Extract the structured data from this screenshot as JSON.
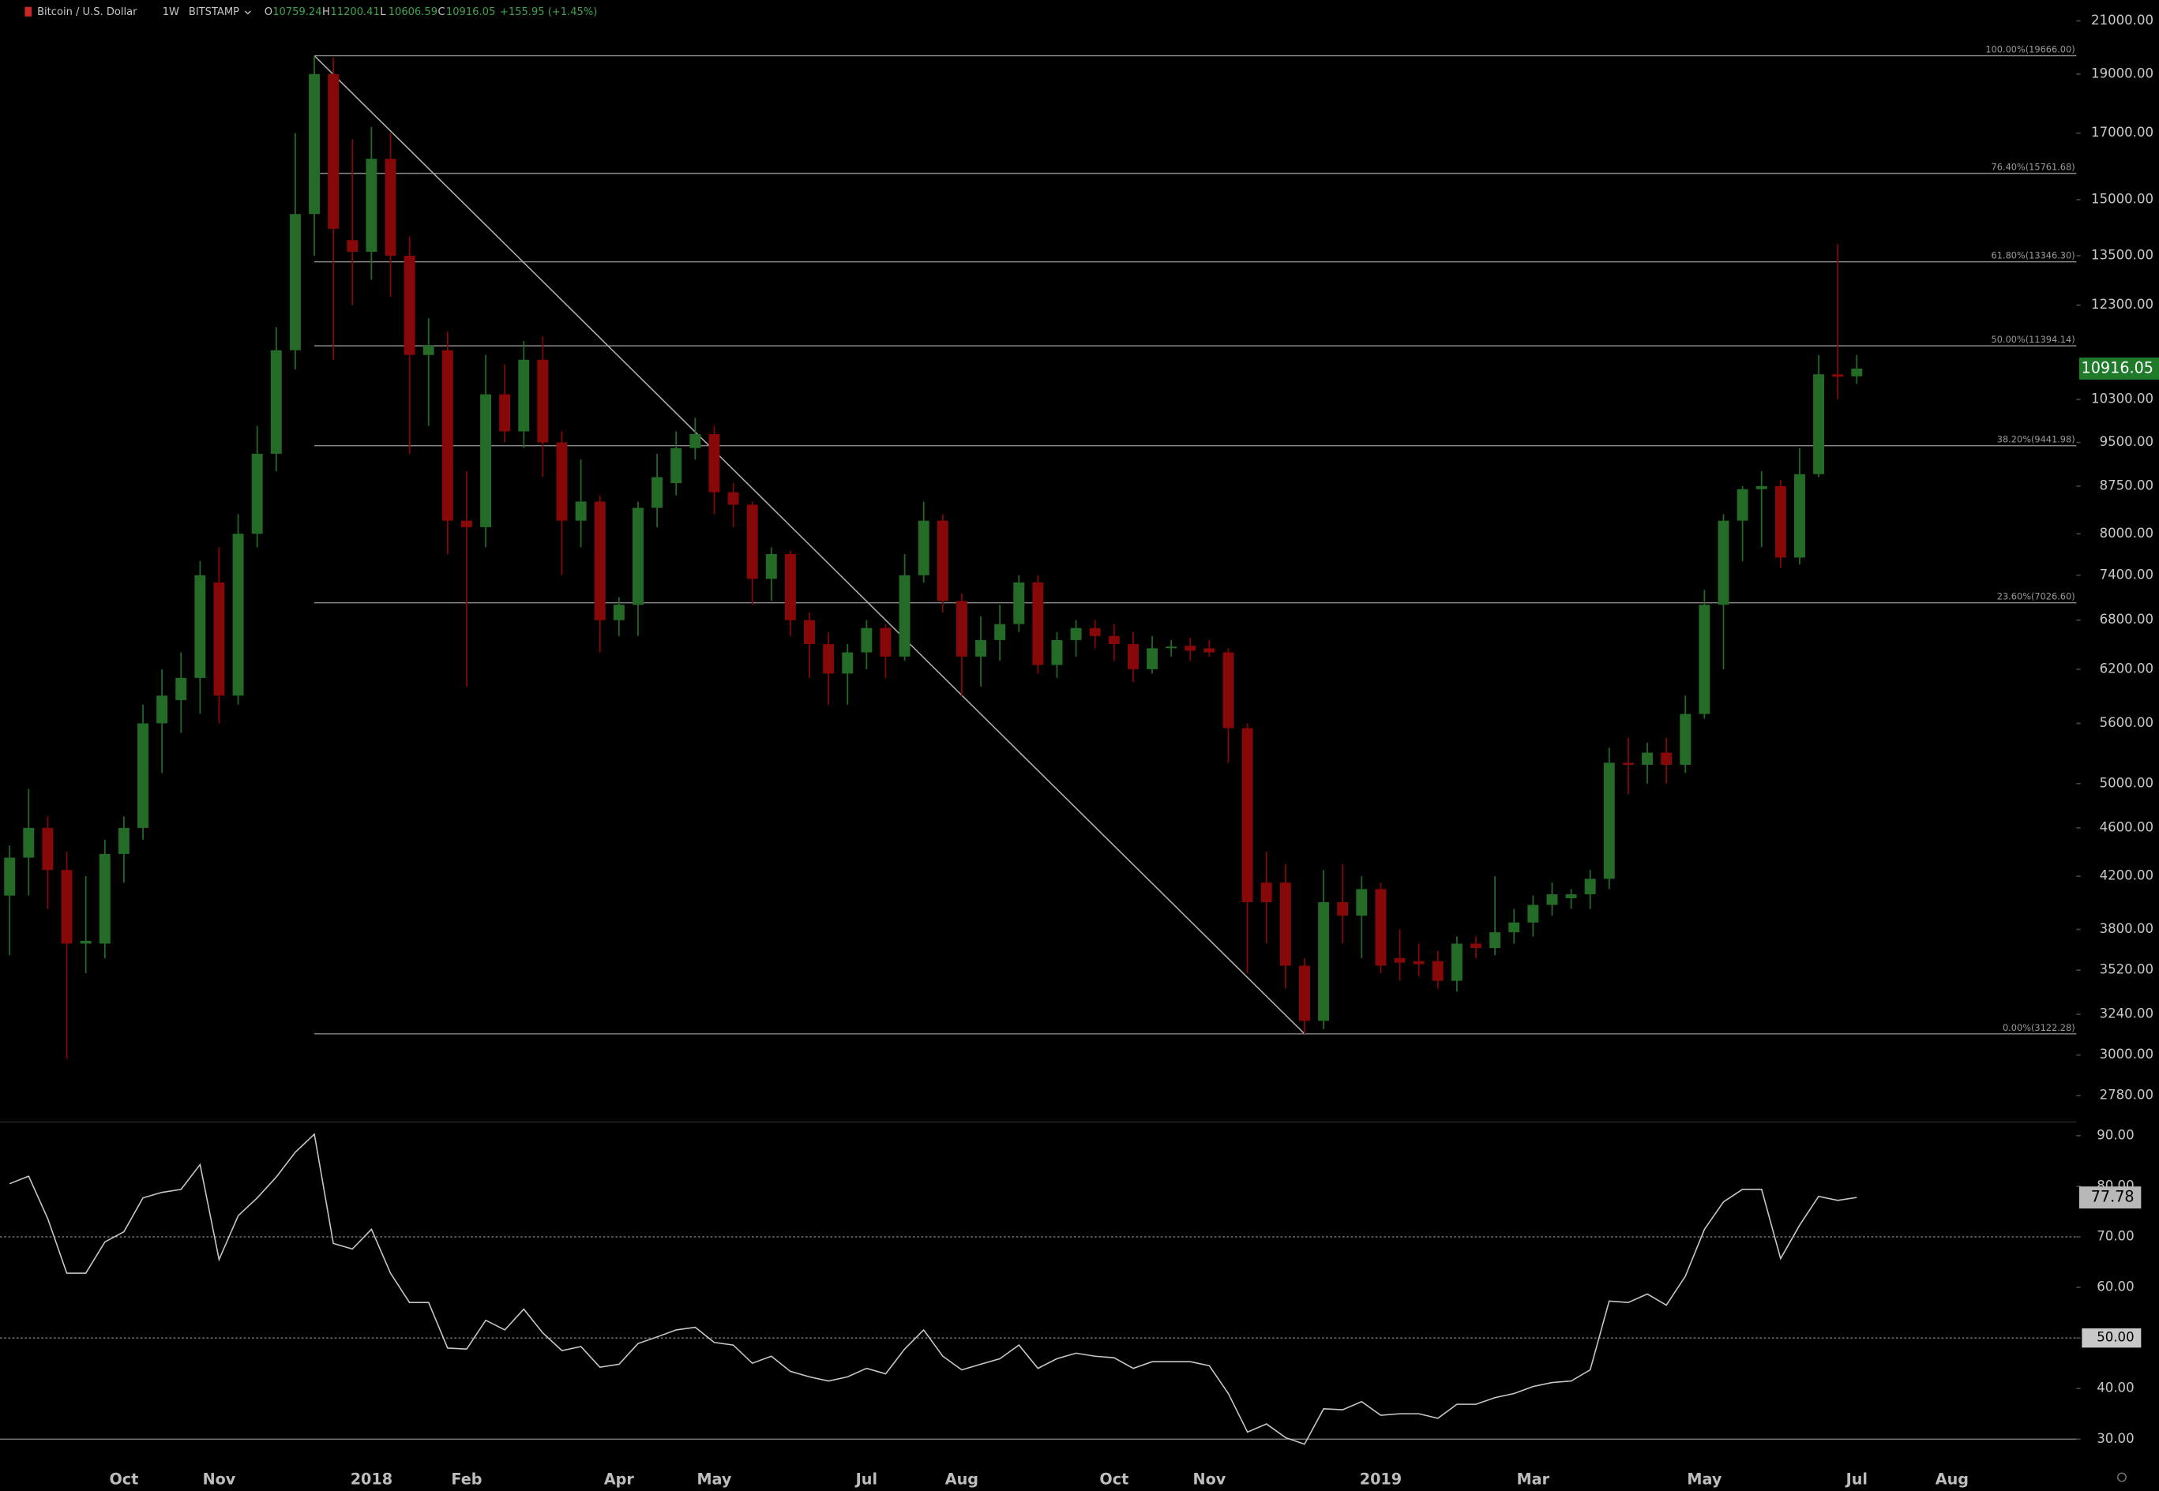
{
  "chart_data": {
    "type": "candlestick",
    "symbol": "Bitcoin / U.S. Dollar",
    "interval": "1W",
    "exchange": "BITSTAMP",
    "header_labels": [
      "O",
      "H",
      "L",
      "C"
    ],
    "change": "+155.95 (+1.45%)",
    "up_color": "#236b27",
    "down_color": "#860808",
    "log_scale": true,
    "categories": [
      null,
      null,
      null,
      null,
      null,
      null,
      "Oct",
      null,
      null,
      null,
      null,
      "Nov",
      null,
      null,
      null,
      null,
      null,
      null,
      null,
      "2018",
      null,
      null,
      null,
      null,
      "Feb",
      null,
      null,
      null,
      null,
      null,
      null,
      null,
      "Apr",
      null,
      null,
      null,
      null,
      "May",
      null,
      null,
      null,
      null,
      null,
      null,
      null,
      "Jul",
      null,
      null,
      null,
      null,
      "Aug",
      null,
      null,
      null,
      null,
      null,
      null,
      null,
      "Oct",
      null,
      null,
      null,
      null,
      "Nov",
      null,
      null,
      null,
      null,
      null,
      null,
      null,
      null,
      "2019",
      null,
      null,
      null,
      null,
      null,
      null,
      null,
      "Mar",
      null,
      null,
      null,
      null,
      null,
      null,
      null,
      null,
      "May",
      null,
      null,
      null,
      null,
      null,
      null,
      null,
      "Jul",
      null,
      null,
      null,
      null,
      "Aug"
    ],
    "open": [
      4050,
      4350,
      4600,
      4250,
      3700,
      3700,
      4380,
      4600,
      5600,
      5850,
      6100,
      7300,
      5900,
      8000,
      9300,
      11300,
      14600,
      19000,
      13900,
      13600,
      16200,
      13500,
      11200,
      11300,
      8200,
      8100,
      10400,
      9700,
      11100,
      9500,
      8200,
      8500,
      6800,
      7000,
      8400,
      8800,
      9400,
      9650,
      8650,
      8450,
      7350,
      7700,
      6800,
      6500,
      6150,
      6400,
      6700,
      6350,
      7400,
      8200,
      7050,
      6350,
      6550,
      6750,
      7300,
      6250,
      6550,
      6700,
      6600,
      6500,
      6200,
      6450,
      6480,
      6450,
      6400,
      5550,
      4150,
      4150,
      3550,
      3200,
      4000,
      3900,
      4100,
      3600,
      3580,
      3580,
      3450,
      3700,
      3670,
      3780,
      3850,
      3980,
      4030,
      4060,
      4180,
      5200,
      5180,
      5300,
      5180,
      5700,
      7000,
      8200,
      8700,
      8750,
      7650,
      8950,
      10800,
      10759.24,
      null,
      null,
      null,
      null,
      null
    ],
    "high": [
      4450,
      4950,
      4700,
      4400,
      4200,
      4500,
      4700,
      5800,
      6200,
      6400,
      7600,
      7800,
      8300,
      9800,
      11800,
      17000,
      19666,
      19600,
      16800,
      17200,
      17000,
      14000,
      12000,
      11700,
      9000,
      11200,
      11000,
      11500,
      11600,
      9700,
      9200,
      8600,
      7100,
      8500,
      9300,
      9700,
      9950,
      9800,
      8800,
      8500,
      7800,
      7750,
      6900,
      6650,
      6500,
      6800,
      6750,
      7700,
      8500,
      8300,
      7150,
      6850,
      7000,
      7400,
      7400,
      6650,
      6800,
      6800,
      6750,
      6650,
      6600,
      6550,
      6580,
      6550,
      6450,
      5600,
      4400,
      4300,
      3600,
      4250,
      4300,
      4200,
      4150,
      3800,
      3700,
      3650,
      3750,
      3750,
      4200,
      3950,
      4050,
      4150,
      4100,
      4250,
      5350,
      5450,
      5400,
      5450,
      5900,
      7200,
      8300,
      8750,
      9000,
      8850,
      9400,
      11200,
      13800,
      11200.41,
      null,
      null,
      null,
      null,
      null
    ],
    "low": [
      3620,
      4050,
      3950,
      2980,
      3500,
      3600,
      4150,
      4500,
      5100,
      5500,
      5700,
      5600,
      5800,
      7800,
      9000,
      10900,
      13500,
      11100,
      12300,
      12900,
      12500,
      9300,
      9800,
      7700,
      6000,
      7800,
      9500,
      9400,
      8900,
      7400,
      7800,
      6400,
      6600,
      6600,
      8100,
      8600,
      9200,
      8300,
      8100,
      7000,
      7050,
      6600,
      6100,
      5800,
      5800,
      6200,
      6100,
      6300,
      7300,
      6900,
      5900,
      6000,
      6300,
      6650,
      6150,
      6100,
      6350,
      6450,
      6300,
      6050,
      6150,
      6350,
      6300,
      6350,
      5200,
      3500,
      3700,
      3400,
      3122.28,
      3150,
      3700,
      3600,
      3500,
      3450,
      3480,
      3400,
      3380,
      3600,
      3620,
      3700,
      3750,
      3900,
      3950,
      3950,
      4100,
      4900,
      5000,
      5000,
      5100,
      5650,
      6200,
      7600,
      7800,
      7500,
      7550,
      8900,
      10300,
      10606.59,
      null,
      null,
      null,
      null,
      null
    ],
    "close": [
      4350,
      4600,
      4250,
      3700,
      3720,
      4380,
      4600,
      5600,
      5900,
      6100,
      7400,
      5900,
      8000,
      9300,
      11300,
      14600,
      19000,
      14200,
      13600,
      16200,
      13500,
      11200,
      11400,
      8200,
      8100,
      10400,
      9700,
      11100,
      9500,
      8200,
      8500,
      6800,
      7000,
      8400,
      8900,
      9400,
      9650,
      8650,
      8450,
      7350,
      7700,
      6800,
      6500,
      6150,
      6400,
      6700,
      6350,
      7400,
      8200,
      7050,
      6350,
      6550,
      6750,
      7300,
      6250,
      6550,
      6700,
      6600,
      6500,
      6200,
      6450,
      6470,
      6420,
      6400,
      5550,
      4000,
      4000,
      3550,
      3200,
      4000,
      3900,
      4100,
      3550,
      3570,
      3560,
      3450,
      3700,
      3670,
      3780,
      3850,
      3980,
      4060,
      4060,
      4180,
      5200,
      5180,
      5300,
      5180,
      5700,
      7000,
      8200,
      8700,
      8750,
      7650,
      8950,
      10800,
      10750,
      10916.05,
      null,
      null,
      null,
      null,
      null
    ],
    "rsi": [
      80.5,
      82,
      73.6,
      62.8,
      62.8,
      69,
      71,
      77.7,
      78.8,
      79.4,
      84.3,
      65.5,
      74.2,
      77.7,
      81.8,
      86.7,
      90.3,
      68.7,
      67.6,
      71.5,
      62.8,
      57,
      57,
      48,
      47.8,
      53.5,
      51.6,
      55.7,
      51,
      47.5,
      48.3,
      44.2,
      44.8,
      48.9,
      50.2,
      51.6,
      52.1,
      49.1,
      48.6,
      45,
      46.4,
      43.4,
      42.3,
      41.5,
      42.3,
      44,
      42.9,
      47.8,
      51.6,
      46.4,
      43.7,
      44.8,
      45.9,
      48.6,
      44,
      45.9,
      47,
      46.4,
      46.1,
      44,
      45.3,
      45.3,
      45.3,
      44.5,
      39,
      31.4,
      33,
      30.3,
      29,
      36,
      35.8,
      37.4,
      34.7,
      35,
      35,
      34.1,
      36.9,
      36.9,
      38.2,
      39,
      40.4,
      41.2,
      41.5,
      43.7,
      57.3,
      57,
      58.7,
      56.5,
      62.2,
      71.5,
      76.9,
      79.4,
      79.4,
      65.7,
      72.3,
      78,
      77.2,
      77.78,
      null,
      null,
      null,
      null,
      null
    ],
    "ylim": [
      2645,
      21840
    ],
    "yticks": [
      {
        "value": 21000,
        "label": "21000.00"
      },
      {
        "value": 19000,
        "label": "19000.00"
      },
      {
        "value": 17000,
        "label": "17000.00"
      },
      {
        "value": 15000,
        "label": "15000.00"
      },
      {
        "value": 13500,
        "label": "13500.00"
      },
      {
        "value": 12300,
        "label": "12300.00"
      },
      {
        "value": 10300,
        "label": "10300.00"
      },
      {
        "value": 9500,
        "label": "9500.00"
      },
      {
        "value": 8750,
        "label": "8750.00"
      },
      {
        "value": 8000,
        "label": "8000.00"
      },
      {
        "value": 7400,
        "label": "7400.00"
      },
      {
        "value": 6800,
        "label": "6800.00"
      },
      {
        "value": 6200,
        "label": "6200.00"
      },
      {
        "value": 5600,
        "label": "5600.00"
      },
      {
        "value": 5000,
        "label": "5000.00"
      },
      {
        "value": 4600,
        "label": "4600.00"
      },
      {
        "value": 4200,
        "label": "4200.00"
      },
      {
        "value": 3800,
        "label": "3800.00"
      },
      {
        "value": 3520,
        "label": "3520.00"
      },
      {
        "value": 3240,
        "label": "3240.00"
      },
      {
        "value": 3000,
        "label": "3000.00"
      },
      {
        "value": 2780,
        "label": "2780.00"
      }
    ],
    "fib_levels": [
      {
        "value": 19666,
        "label": "100.00%(19666.00)"
      },
      {
        "value": 15761.68,
        "label": "76.40%(15761.68)"
      },
      {
        "value": 13346.3,
        "label": "61.80%(13346.30)"
      },
      {
        "value": 11394.14,
        "label": "50.00%(11394.14)"
      },
      {
        "value": 9441.98,
        "label": "38.20%(9441.98)"
      },
      {
        "value": 7026.6,
        "label": "23.60%(7026.60)"
      },
      {
        "value": 3122.28,
        "label": "0.00%(3122.28)"
      }
    ],
    "y2lim": [
      26,
      92.7
    ],
    "y2ticks": [
      {
        "value": 90,
        "label": "90.00"
      },
      {
        "value": 80,
        "label": "80.00"
      },
      {
        "value": 70,
        "label": "70.00"
      },
      {
        "value": 60,
        "label": "60.00"
      },
      {
        "value": 50,
        "label": "50.00"
      },
      {
        "value": 40,
        "label": "40.00"
      },
      {
        "value": 30,
        "label": "30.00"
      }
    ],
    "rsi_bands": [
      70,
      50,
      30
    ],
    "rsi_baseline": 50
  }
}
